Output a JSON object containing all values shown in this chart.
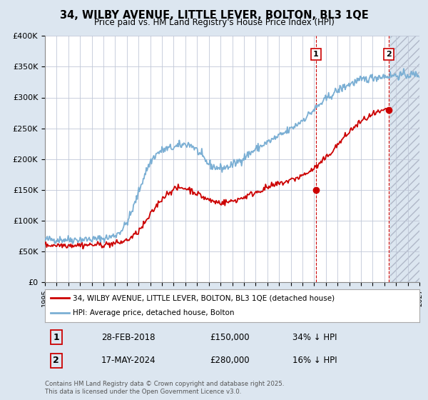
{
  "title": "34, WILBY AVENUE, LITTLE LEVER, BOLTON, BL3 1QE",
  "subtitle": "Price paid vs. HM Land Registry's House Price Index (HPI)",
  "legend_label_red": "34, WILBY AVENUE, LITTLE LEVER, BOLTON, BL3 1QE (detached house)",
  "legend_label_blue": "HPI: Average price, detached house, Bolton",
  "annotation1_date": "28-FEB-2018",
  "annotation1_price": "£150,000",
  "annotation1_hpi": "34% ↓ HPI",
  "annotation1_year": 2018.15,
  "annotation1_value": 150000,
  "annotation2_date": "17-MAY-2024",
  "annotation2_price": "£280,000",
  "annotation2_hpi": "16% ↓ HPI",
  "annotation2_year": 2024.37,
  "annotation2_value": 280000,
  "footer": "Contains HM Land Registry data © Crown copyright and database right 2025.\nThis data is licensed under the Open Government Licence v3.0.",
  "xmin": 1995,
  "xmax": 2027,
  "ymin": 0,
  "ymax": 400000,
  "yticks": [
    0,
    50000,
    100000,
    150000,
    200000,
    250000,
    300000,
    350000,
    400000
  ],
  "ytick_labels": [
    "£0",
    "£50K",
    "£100K",
    "£150K",
    "£200K",
    "£250K",
    "£300K",
    "£350K",
    "£400K"
  ],
  "red_color": "#cc0000",
  "blue_color": "#7bafd4",
  "vline_color": "#cc0000",
  "fig_bg_color": "#dce6f0",
  "plot_bg_color": "#ffffff",
  "grid_color": "#c0c8d8",
  "shade_color": "#dce6f0",
  "shade_start": 2024.5,
  "shade_end": 2027.5
}
